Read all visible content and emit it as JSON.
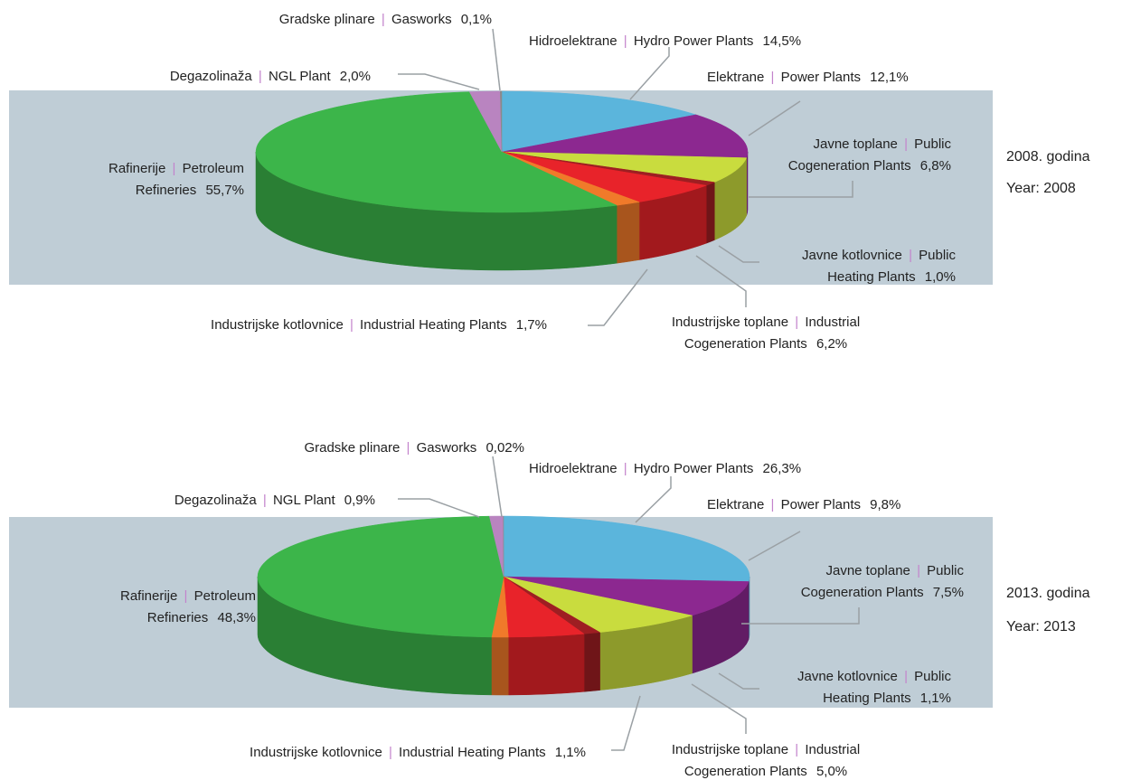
{
  "chart_data": [
    {
      "type": "pie",
      "annotation": [
        "2008. godina",
        "Year: 2008"
      ],
      "separator": "|",
      "categories_hr": [
        "Hidroelektrane",
        "Elektrane",
        "Javne toplane",
        "Javne kotlovnice",
        "Industrijske toplane",
        "Industrijske kotlovnice",
        "Rafinerije",
        "Degazolinaža",
        "Gradske plinare"
      ],
      "categories_en": [
        "Hydro Power Plants",
        "Power Plants",
        "Public Cogeneration Plants",
        "Public Heating Plants",
        "Industrial Cogeneration Plants",
        "Industrial Heating Plants",
        "Petroleum Refineries",
        "NGL Plant",
        "Gasworks"
      ],
      "values": [
        14.5,
        12.1,
        6.8,
        1.0,
        6.2,
        1.7,
        55.7,
        2.0,
        0.1
      ],
      "value_labels": [
        "14,5%",
        "12,1%",
        "6,8%",
        "1,0%",
        "6,2%",
        "1,7%",
        "55,7%",
        "2,0%",
        "0,1%"
      ],
      "colors": [
        "#5bb5dc",
        "#8c2890",
        "#c9dc3e",
        "#9e1e22",
        "#e8232a",
        "#f07a2a",
        "#3cb54a",
        "#b984c0",
        "#8a8a8a"
      ]
    },
    {
      "type": "pie",
      "annotation": [
        "2013. godina",
        "Year: 2013"
      ],
      "separator": "|",
      "categories_hr": [
        "Hidroelektrane",
        "Elektrane",
        "Javne toplane",
        "Javne kotlovnice",
        "Industrijske toplane",
        "Industrijske kotlovnice",
        "Rafinerije",
        "Degazolinaža",
        "Gradske plinare"
      ],
      "categories_en": [
        "Hydro Power Plants",
        "Power Plants",
        "Public Cogeneration Plants",
        "Public Heating Plants",
        "Industrial Cogeneration Plants",
        "Industrial Heating Plants",
        "Petroleum Refineries",
        "NGL Plant",
        "Gasworks"
      ],
      "values": [
        26.3,
        9.8,
        7.5,
        1.1,
        5.0,
        1.1,
        48.3,
        0.9,
        0.02
      ],
      "value_labels": [
        "26,3%",
        "9,8%",
        "7,5%",
        "1,1%",
        "5,0%",
        "1,1%",
        "48,3%",
        "0,9%",
        "0,02%"
      ],
      "colors": [
        "#5bb5dc",
        "#8c2890",
        "#c9dc3e",
        "#9e1e22",
        "#e8232a",
        "#f07a2a",
        "#3cb54a",
        "#b984c0",
        "#8a8a8a"
      ]
    }
  ]
}
